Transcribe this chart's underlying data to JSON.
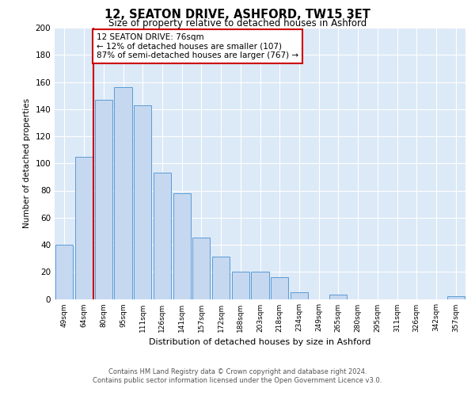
{
  "title": "12, SEATON DRIVE, ASHFORD, TW15 3ET",
  "subtitle": "Size of property relative to detached houses in Ashford",
  "xlabel": "Distribution of detached houses by size in Ashford",
  "ylabel": "Number of detached properties",
  "categories": [
    "49sqm",
    "64sqm",
    "80sqm",
    "95sqm",
    "111sqm",
    "126sqm",
    "141sqm",
    "157sqm",
    "172sqm",
    "188sqm",
    "203sqm",
    "218sqm",
    "234sqm",
    "249sqm",
    "265sqm",
    "280sqm",
    "295sqm",
    "311sqm",
    "326sqm",
    "342sqm",
    "357sqm"
  ],
  "values": [
    40,
    105,
    147,
    156,
    143,
    93,
    78,
    45,
    31,
    20,
    20,
    16,
    5,
    0,
    3,
    0,
    0,
    0,
    0,
    0,
    2
  ],
  "bar_color": "#c5d8f0",
  "bar_edge_color": "#5b9bd5",
  "vline_color": "#cc0000",
  "annotation_title": "12 SEATON DRIVE: 76sqm",
  "annotation_line1": "← 12% of detached houses are smaller (107)",
  "annotation_line2": "87% of semi-detached houses are larger (767) →",
  "annotation_box_color": "#ffffff",
  "annotation_box_edge": "#cc0000",
  "ylim": [
    0,
    200
  ],
  "yticks": [
    0,
    20,
    40,
    60,
    80,
    100,
    120,
    140,
    160,
    180,
    200
  ],
  "background_color": "#dce9f7",
  "footer_line1": "Contains HM Land Registry data © Crown copyright and database right 2024.",
  "footer_line2": "Contains public sector information licensed under the Open Government Licence v3.0."
}
